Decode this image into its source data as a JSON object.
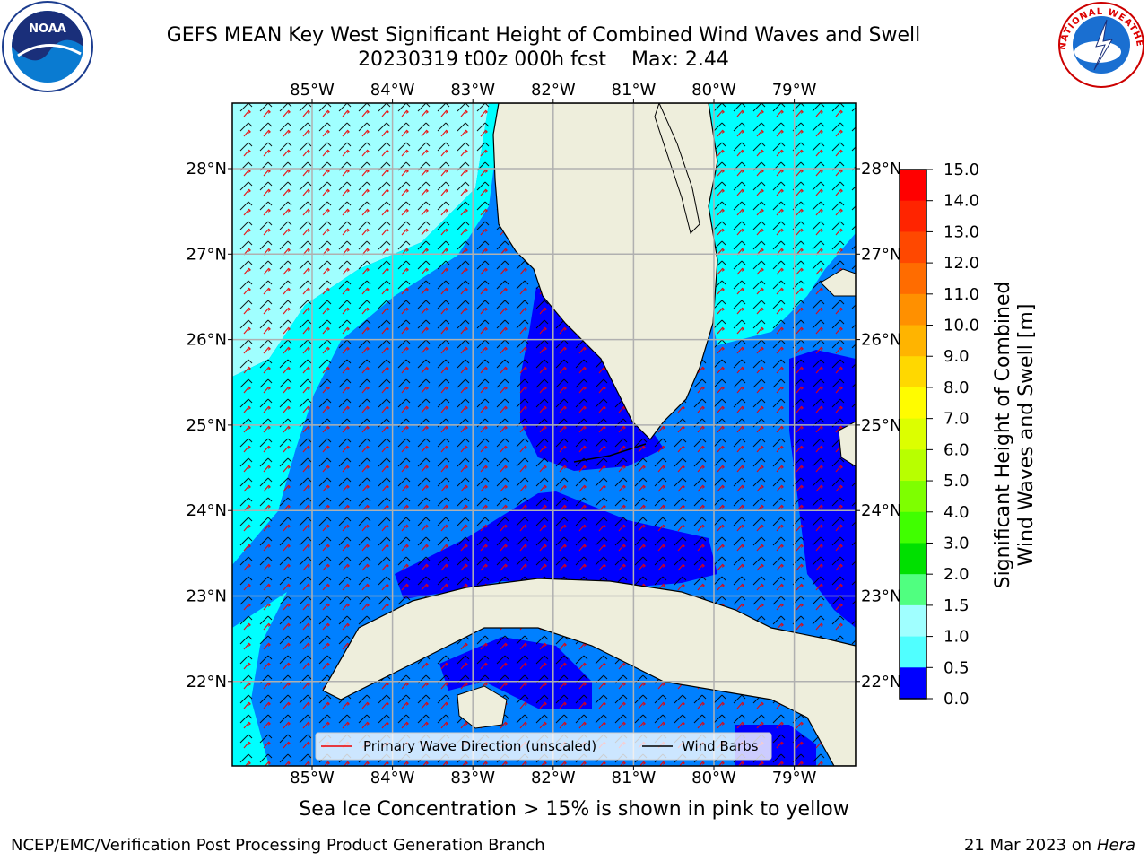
{
  "title_line1": "GEFS MEAN Key West Significant Height of Combined Wind Waves and Swell",
  "title_line2": "20230319 t00z 000h fcst",
  "max_label": "Max: 2.44",
  "logos": {
    "left": "NOAA",
    "right": "NATIONAL WEATHER SERVICE"
  },
  "lon_labels": [
    "85°W",
    "84°W",
    "83°W",
    "82°W",
    "81°W",
    "80°W",
    "79°W"
  ],
  "lat_labels": [
    "28°N",
    "27°N",
    "26°N",
    "25°N",
    "24°N",
    "23°N",
    "22°N"
  ],
  "legend": {
    "wave": "Primary Wave Direction (unscaled)",
    "wind": "Wind Barbs"
  },
  "colorbar": {
    "label_line1": "Significant Height of Combined",
    "label_line2": "Wind Waves and Swell [m]",
    "ticks": [
      "15.0",
      "14.0",
      "13.0",
      "12.0",
      "11.0",
      "10.0",
      "9.0",
      "8.0",
      "7.0",
      "6.0",
      "5.0",
      "4.0",
      "3.0",
      "2.0",
      "1.5",
      "1.0",
      "0.5",
      "0.0"
    ],
    "colors": [
      "#ff0000",
      "#ff2400",
      "#ff4800",
      "#ff6c00",
      "#ff9000",
      "#ffb400",
      "#ffd800",
      "#fffc00",
      "#dcff00",
      "#b8ff00",
      "#7eff00",
      "#40ff00",
      "#00e000",
      "#50ff80",
      "#a0ffff",
      "#50ffff",
      "#00ffff",
      "#0088ff",
      "#0000ff"
    ]
  },
  "footer": {
    "note": "Sea Ice Concentration > 15% is shown in pink to yellow",
    "credit": "NCEP/EMC/Verification Post Processing Product Generation Branch",
    "date": "21 Mar 2023 on",
    "host": "Hera"
  },
  "colors": {
    "land": "#eeeedc",
    "light_cyan": "#a0ffff",
    "cyan": "#50ffff",
    "aqua": "#00ffff",
    "mid_blue": "#0080ff",
    "deep_blue": "#0000ff"
  }
}
